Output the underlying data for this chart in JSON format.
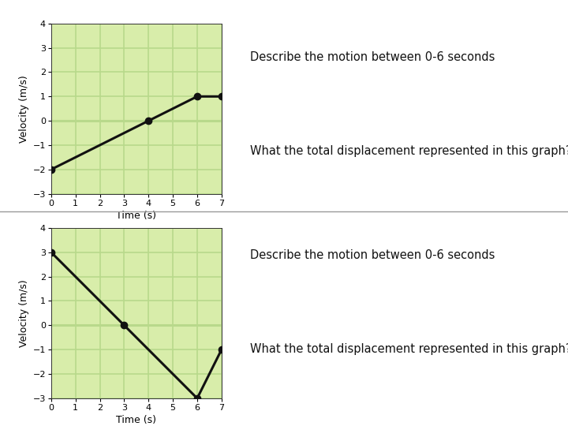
{
  "chart1": {
    "x": [
      0,
      4,
      6,
      7
    ],
    "y": [
      -2,
      0,
      1,
      1
    ],
    "xlabel": "Time (s)",
    "ylabel": "Velocity (m/s)",
    "xlim": [
      0,
      7
    ],
    "ylim": [
      -3,
      4
    ],
    "xticks": [
      0,
      1,
      2,
      3,
      4,
      5,
      6,
      7
    ],
    "yticks": [
      -3,
      -2,
      -1,
      0,
      1,
      2,
      3,
      4
    ],
    "text1": "Describe the motion between 0-6 seconds",
    "text2": "What the total displacement represented in this graph?"
  },
  "chart2": {
    "x": [
      0,
      3,
      6,
      7
    ],
    "y": [
      3,
      0,
      -3,
      -1
    ],
    "xlabel": "Time (s)",
    "ylabel": "Velocity (m/s)",
    "xlim": [
      0,
      7
    ],
    "ylim": [
      -3,
      4
    ],
    "xticks": [
      0,
      1,
      2,
      3,
      4,
      5,
      6,
      7
    ],
    "yticks": [
      -3,
      -2,
      -1,
      0,
      1,
      2,
      3,
      4
    ],
    "text1": "Describe the motion between 0-6 seconds",
    "text2": "What the total displacement represented in this graph?"
  },
  "grid_color": "#b8d98b",
  "grid_bg_color": "#d8edaa",
  "line_color": "#111111",
  "marker_color": "#111111",
  "marker_size": 6,
  "line_width": 2.2,
  "divider_color": "#999999",
  "text_font_size": 10.5,
  "axis_label_font_size": 9,
  "tick_font_size": 8,
  "bg_color": "#ffffff"
}
